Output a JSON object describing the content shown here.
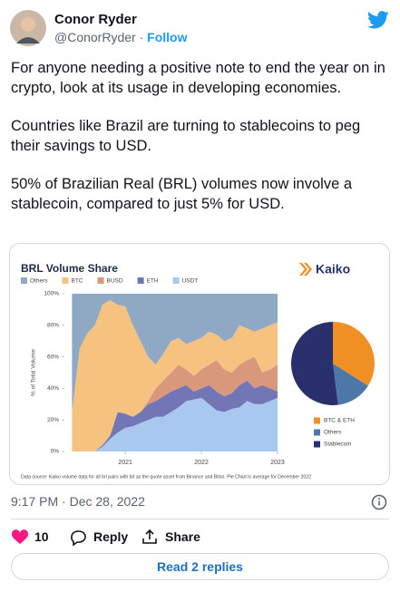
{
  "tweet": {
    "author": {
      "name": "Conor Ryder",
      "handle": "@ConorRyder",
      "follow": "Follow"
    },
    "text": [
      "For anyone needing a positive note to end the year on in crypto, look at its usage in developing economies.",
      "Countries like Brazil are turning to stablecoins to peg their savings to USD.",
      "50% of Brazilian Real (BRL) volumes now involve a stablecoin, compared to just 5% for USD."
    ],
    "timestamp": "9:17 PM · Dec 28, 2022",
    "likes": 10,
    "actions": [
      "Reply",
      "Share"
    ],
    "read_replies": "Read 2 replies"
  },
  "chart_data": [
    {
      "type": "area",
      "title": "BRL Volume Share",
      "logo": "Kaiko",
      "ylabel": "% of Total Volume",
      "note": "Data source: Kaiko volume data for all brl pairs with brl as the quote asset from Binance and Bitso. Pie Chart is average for December 2022",
      "x": [
        2020.3,
        2020.4,
        2020.5,
        2020.6,
        2020.7,
        2020.8,
        2020.9,
        2021.0,
        2021.1,
        2021.2,
        2021.3,
        2021.4,
        2021.5,
        2021.6,
        2021.7,
        2021.8,
        2021.9,
        2022.0,
        2022.1,
        2022.2,
        2022.3,
        2022.4,
        2022.5,
        2022.6,
        2022.7,
        2022.8,
        2022.9,
        2023.0
      ],
      "series": [
        {
          "name": "Others",
          "color": "#8fa9c4",
          "values": [
            75,
            35,
            25,
            20,
            7,
            4,
            7,
            8,
            20,
            30,
            40,
            45,
            38,
            30,
            28,
            32,
            30,
            28,
            24,
            26,
            30,
            28,
            20,
            22,
            24,
            22,
            20,
            18
          ]
        },
        {
          "name": "BTC",
          "color": "#f5c280",
          "values": [
            25,
            65,
            75,
            80,
            89,
            86,
            68,
            68,
            58,
            45,
            28,
            15,
            17,
            20,
            17,
            16,
            22,
            20,
            21,
            16,
            18,
            22,
            25,
            20,
            16,
            28,
            28,
            27
          ]
        },
        {
          "name": "BUSD",
          "color": "#d9977c",
          "values": [
            0,
            0,
            0,
            0,
            0,
            0,
            0,
            0,
            0,
            0,
            2,
            8,
            10,
            12,
            15,
            10,
            10,
            12,
            13,
            20,
            17,
            13,
            13,
            13,
            20,
            8,
            12,
            17
          ]
        },
        {
          "name": "ETH",
          "color": "#7276b4",
          "values": [
            0,
            0,
            0,
            0,
            1,
            2,
            13,
            9,
            6,
            7,
            10,
            10,
            13,
            13,
            12,
            10,
            5,
            6,
            12,
            12,
            10,
            10,
            14,
            13,
            10,
            12,
            8,
            4
          ]
        },
        {
          "name": "USDT",
          "color": "#a8c8ef",
          "values": [
            0,
            0,
            0,
            0,
            3,
            8,
            12,
            15,
            16,
            18,
            20,
            22,
            22,
            25,
            28,
            32,
            33,
            34,
            30,
            26,
            25,
            27,
            28,
            32,
            30,
            30,
            32,
            34
          ]
        }
      ],
      "stacked": true,
      "xlim": [
        2020.2,
        2023.0
      ],
      "xticks": [
        2021,
        2022,
        2023
      ],
      "ylim": [
        0,
        100
      ],
      "yticks": [
        {
          "value": 0,
          "label": "0%"
        },
        {
          "value": 20,
          "label": "20%"
        },
        {
          "value": 40,
          "label": "40%"
        },
        {
          "value": 60,
          "label": "60%"
        },
        {
          "value": 80,
          "label": "80%"
        },
        {
          "value": 100,
          "label": "100%"
        }
      ]
    },
    {
      "type": "pie",
      "categories": [
        "BTC & ETH",
        "Others",
        "Stablecoin"
      ],
      "values": [
        34,
        14,
        52
      ],
      "colors": [
        "#ef8f24",
        "#4c77a8",
        "#2a2f6e"
      ]
    }
  ]
}
